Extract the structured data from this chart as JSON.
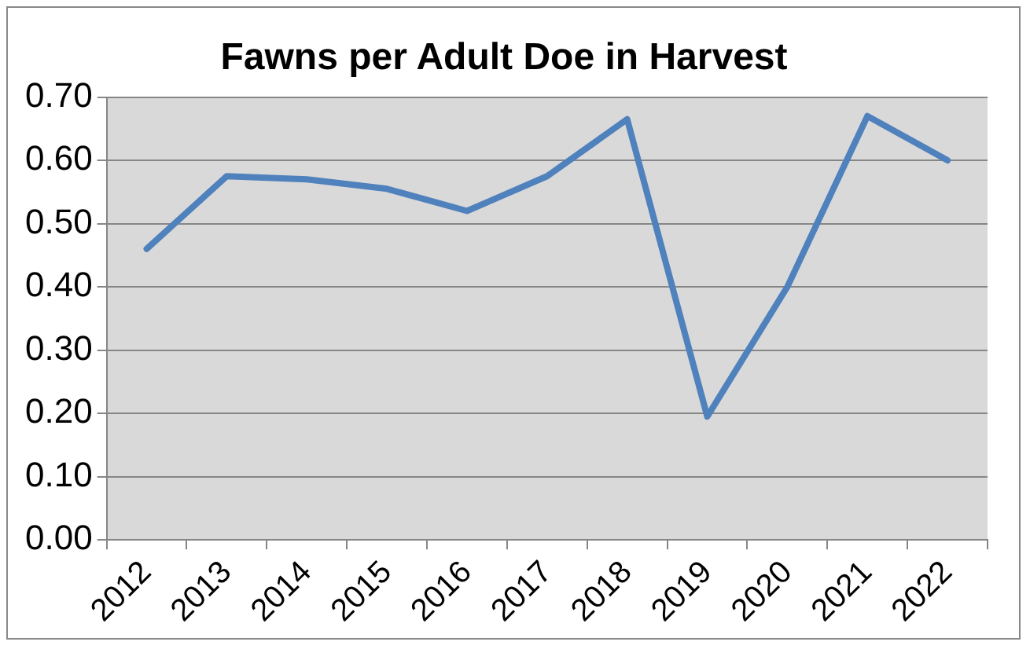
{
  "chart_data": {
    "type": "line",
    "title": "Fawns per Adult Doe in Harvest",
    "categories": [
      "2012",
      "2013",
      "2014",
      "2015",
      "2016",
      "2017",
      "2018",
      "2019",
      "2020",
      "2021",
      "2022"
    ],
    "series": [
      {
        "color": "#4f81bd",
        "values": [
          0.46,
          0.575,
          0.57,
          0.555,
          0.52,
          0.575,
          0.665,
          0.195,
          0.4,
          0.67,
          0.6
        ]
      }
    ],
    "ylim": [
      0,
      0.7
    ],
    "yticks": [
      {
        "value": 0,
        "label": "0.00"
      },
      {
        "value": 0.1,
        "label": "0.10"
      },
      {
        "value": 0.2,
        "label": "0.20"
      },
      {
        "value": 0.3,
        "label": "0.30"
      },
      {
        "value": 0.4,
        "label": "0.40"
      },
      {
        "value": 0.5,
        "label": "0.50"
      },
      {
        "value": 0.6,
        "label": "0.60"
      },
      {
        "value": 0.7,
        "label": "0.70"
      }
    ],
    "grid": "y",
    "marker": "none",
    "line_style": "solid"
  }
}
